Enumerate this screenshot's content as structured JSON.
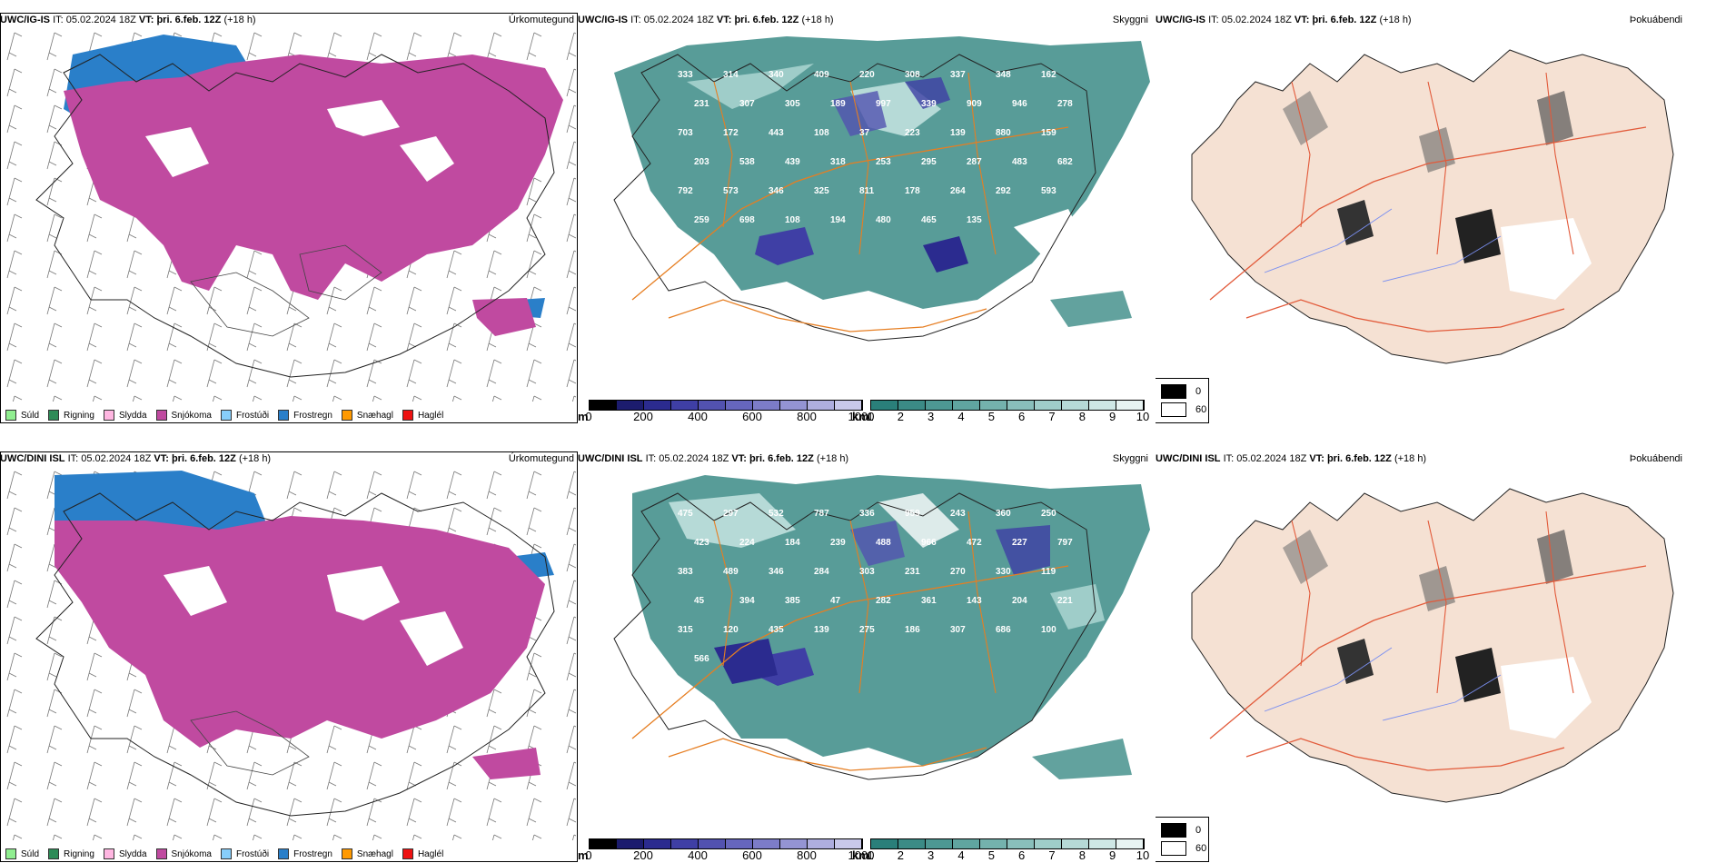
{
  "rows": [
    {
      "model": "UWC/IG-IS",
      "it_label": "IT:",
      "it_value": "05.02.2024 18Z",
      "vt_label": "VT:",
      "vt_value": "þri. 6.feb. 12Z",
      "lead": "(+18 h)",
      "panels": [
        {
          "name": "precip",
          "right_label": "Úrkomutegund"
        },
        {
          "name": "cloud",
          "right_label": "Skyggni"
        },
        {
          "name": "fog",
          "right_label": "Þokuábendi"
        }
      ]
    },
    {
      "model": "UWC/DINI ISL",
      "it_label": "IT:",
      "it_value": "05.02.2024 18Z",
      "vt_label": "VT:",
      "vt_value": "þri. 6.feb. 12Z",
      "lead": "(+18 h)",
      "panels": [
        {
          "name": "precip",
          "right_label": "Úrkomutegund"
        },
        {
          "name": "cloud",
          "right_label": "Skyggni"
        },
        {
          "name": "fog",
          "right_label": "Þokuábendi"
        }
      ]
    }
  ],
  "precip_legend": [
    {
      "label": "Súld",
      "color": "#90ee90"
    },
    {
      "label": "Rigning",
      "color": "#2e8b57"
    },
    {
      "label": "Slydda",
      "color": "#ffb6e1"
    },
    {
      "label": "Snjókoma",
      "color": "#c04aa0"
    },
    {
      "label": "Frostúði",
      "color": "#87cefa"
    },
    {
      "label": "Frostregn",
      "color": "#2a7fc9"
    },
    {
      "label": "Snæhagl",
      "color": "#ff9900"
    },
    {
      "label": "Haglél",
      "color": "#ee1111"
    }
  ],
  "colorbar_m": {
    "unit": "m",
    "ticks": [
      "0",
      "200",
      "400",
      "600",
      "800",
      "1000"
    ],
    "colors": [
      "#000000",
      "#1c1c6e",
      "#2b2b8f",
      "#3f3fa5",
      "#5252b0",
      "#6666bd",
      "#7c7cc8",
      "#9494d3",
      "#aeaedf",
      "#c8c8ea"
    ]
  },
  "colorbar_km": {
    "unit": "km",
    "ticks": [
      "1",
      "2",
      "3",
      "4",
      "5",
      "6",
      "7",
      "8",
      "9",
      "10"
    ],
    "colors": [
      "#2a7f7a",
      "#3b8b86",
      "#4d9893",
      "#60a5a0",
      "#74b2ad",
      "#89bfbb",
      "#9fcdc9",
      "#b6dad7",
      "#ceE7e5",
      "#e7f3f2"
    ]
  },
  "fog_legend": [
    {
      "label": "0",
      "color": "#000000"
    },
    {
      "label": "60",
      "color": "#ffffff"
    }
  ],
  "cloud_labels_top": [
    "333",
    "314",
    "340",
    "409",
    "220",
    "308",
    "337",
    "348",
    "162",
    "231",
    "307",
    "305",
    "189",
    "997",
    "339",
    "909",
    "946",
    "278",
    "703",
    "172",
    "443",
    "108",
    "37",
    "223",
    "139",
    "880",
    "159",
    "203",
    "538",
    "439",
    "318",
    "253",
    "295",
    "287",
    "483",
    "682",
    "792",
    "573",
    "346",
    "325",
    "811",
    "178",
    "264",
    "292",
    "593",
    "259",
    "698",
    "108",
    "194",
    "480",
    "465",
    "135"
  ],
  "cloud_labels_bottom": [
    "475",
    "297",
    "532",
    "787",
    "336",
    "959",
    "243",
    "360",
    "250",
    "423",
    "224",
    "184",
    "239",
    "488",
    "966",
    "472",
    "227",
    "797",
    "383",
    "489",
    "346",
    "284",
    "303",
    "231",
    "270",
    "330",
    "119",
    "45",
    "394",
    "385",
    "47",
    "282",
    "361",
    "143",
    "204",
    "221",
    "315",
    "120",
    "435",
    "139",
    "275",
    "186",
    "307",
    "686",
    "100",
    "566"
  ]
}
